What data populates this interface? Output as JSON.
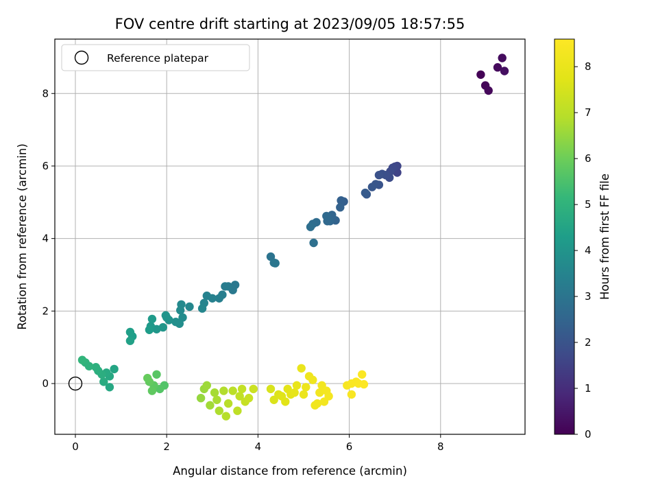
{
  "chart_data": {
    "type": "scatter",
    "title": "FOV centre drift starting at 2023/09/05 18:57:55",
    "xlabel": "Angular distance from reference (arcmin)",
    "ylabel": "Rotation from reference (arcmin)",
    "xlim": [
      -0.45,
      9.85
    ],
    "ylim": [
      -1.4,
      9.5
    ],
    "xticks": [
      0,
      2,
      4,
      6,
      8
    ],
    "yticks": [
      0,
      2,
      4,
      6,
      8
    ],
    "grid": true,
    "legend": {
      "placement": "top-left",
      "entries": [
        "Reference platepar"
      ]
    },
    "reference_point": {
      "x": 0,
      "y": 0
    },
    "colorbar": {
      "label": "Hours from first FF file",
      "range": [
        0,
        8.6
      ],
      "ticks": [
        0,
        1,
        2,
        3,
        4,
        5,
        6,
        7,
        8
      ],
      "colormap": "viridis"
    },
    "points": [
      [
        8.88,
        8.52,
        0.05
      ],
      [
        8.98,
        8.22,
        0.1
      ],
      [
        9.05,
        8.08,
        0.15
      ],
      [
        9.25,
        8.72,
        0.2
      ],
      [
        9.35,
        8.98,
        0.25
      ],
      [
        9.4,
        8.62,
        0.3
      ],
      [
        7.05,
        5.82,
        1.55
      ],
      [
        7.05,
        6.0,
        1.6
      ],
      [
        7.0,
        5.98,
        1.65
      ],
      [
        6.95,
        5.95,
        1.7
      ],
      [
        6.9,
        5.85,
        1.75
      ],
      [
        6.88,
        5.68,
        1.8
      ],
      [
        6.8,
        5.75,
        1.85
      ],
      [
        6.72,
        5.78,
        1.9
      ],
      [
        6.65,
        5.75,
        1.95
      ],
      [
        6.65,
        5.48,
        2.0
      ],
      [
        6.58,
        5.5,
        2.05
      ],
      [
        6.5,
        5.42,
        2.1
      ],
      [
        6.38,
        5.22,
        2.15
      ],
      [
        6.35,
        5.26,
        2.2
      ],
      [
        5.88,
        5.02,
        2.3
      ],
      [
        5.82,
        5.05,
        2.35
      ],
      [
        5.8,
        4.86,
        2.4
      ],
      [
        5.7,
        4.5,
        2.45
      ],
      [
        5.62,
        4.65,
        2.5
      ],
      [
        5.58,
        4.48,
        2.55
      ],
      [
        5.52,
        4.48,
        2.6
      ],
      [
        5.5,
        4.62,
        2.65
      ],
      [
        5.28,
        4.45,
        2.7
      ],
      [
        5.2,
        4.4,
        2.75
      ],
      [
        5.15,
        4.32,
        2.8
      ],
      [
        5.22,
        3.88,
        2.85
      ],
      [
        4.28,
        3.5,
        2.95
      ],
      [
        4.35,
        3.33,
        3.0
      ],
      [
        4.38,
        3.32,
        3.05
      ],
      [
        3.5,
        2.72,
        3.1
      ],
      [
        3.45,
        2.58,
        3.15
      ],
      [
        3.35,
        2.68,
        3.2
      ],
      [
        3.28,
        2.68,
        3.25
      ],
      [
        3.22,
        2.45,
        3.3
      ],
      [
        3.15,
        2.35,
        3.35
      ],
      [
        3.0,
        2.35,
        3.4
      ],
      [
        2.88,
        2.42,
        3.45
      ],
      [
        2.82,
        2.22,
        3.5
      ],
      [
        2.78,
        2.07,
        3.55
      ],
      [
        2.5,
        2.12,
        3.6
      ],
      [
        2.32,
        2.18,
        3.65
      ],
      [
        2.3,
        2.02,
        3.7
      ],
      [
        2.35,
        1.82,
        3.75
      ],
      [
        2.28,
        1.65,
        3.8
      ],
      [
        2.2,
        1.7,
        3.85
      ],
      [
        2.05,
        1.75,
        3.9
      ],
      [
        2.0,
        1.82,
        3.95
      ],
      [
        1.98,
        1.88,
        4.0
      ],
      [
        1.92,
        1.55,
        4.05
      ],
      [
        1.78,
        1.5,
        4.1
      ],
      [
        1.65,
        1.58,
        4.15
      ],
      [
        1.68,
        1.78,
        4.2
      ],
      [
        1.62,
        1.48,
        4.25
      ],
      [
        1.25,
        1.3,
        4.3
      ],
      [
        1.2,
        1.42,
        4.35
      ],
      [
        1.2,
        1.18,
        4.4
      ],
      [
        0.85,
        0.4,
        4.55
      ],
      [
        0.75,
        -0.1,
        4.6
      ],
      [
        0.75,
        0.2,
        4.65
      ],
      [
        0.68,
        0.3,
        4.7
      ],
      [
        0.62,
        0.05,
        4.75
      ],
      [
        0.58,
        0.25,
        4.8
      ],
      [
        0.5,
        0.35,
        4.85
      ],
      [
        0.45,
        0.45,
        4.9
      ],
      [
        0.3,
        0.48,
        4.95
      ],
      [
        0.22,
        0.58,
        5.0
      ],
      [
        0.15,
        0.65,
        5.05
      ],
      [
        1.95,
        -0.05,
        5.6
      ],
      [
        1.85,
        -0.15,
        5.65
      ],
      [
        1.78,
        0.25,
        5.7
      ],
      [
        1.72,
        -0.05,
        5.75
      ],
      [
        1.68,
        -0.2,
        5.8
      ],
      [
        1.62,
        0.05,
        5.85
      ],
      [
        1.58,
        0.15,
        5.9
      ],
      [
        2.75,
        -0.4,
        6.5
      ],
      [
        2.82,
        -0.15,
        6.55
      ],
      [
        2.88,
        -0.05,
        6.6
      ],
      [
        2.95,
        -0.6,
        6.65
      ],
      [
        3.05,
        -0.25,
        6.7
      ],
      [
        3.1,
        -0.45,
        6.75
      ],
      [
        3.15,
        -0.75,
        6.8
      ],
      [
        3.25,
        -0.2,
        6.85
      ],
      [
        3.3,
        -0.9,
        6.9
      ],
      [
        3.35,
        -0.55,
        6.95
      ],
      [
        3.45,
        -0.2,
        7.0
      ],
      [
        3.55,
        -0.75,
        7.05
      ],
      [
        3.6,
        -0.35,
        7.1
      ],
      [
        3.65,
        -0.15,
        7.15
      ],
      [
        3.72,
        -0.5,
        7.2
      ],
      [
        3.8,
        -0.4,
        7.25
      ],
      [
        3.9,
        -0.15,
        7.3
      ],
      [
        4.28,
        -0.15,
        7.55
      ],
      [
        4.35,
        -0.45,
        7.6
      ],
      [
        4.45,
        -0.3,
        7.65
      ],
      [
        4.52,
        -0.35,
        7.7
      ],
      [
        4.6,
        -0.5,
        7.75
      ],
      [
        4.65,
        -0.15,
        7.8
      ],
      [
        4.72,
        -0.3,
        7.85
      ],
      [
        4.8,
        -0.25,
        7.9
      ],
      [
        4.85,
        -0.05,
        7.95
      ],
      [
        4.95,
        0.42,
        8.0
      ],
      [
        5.0,
        -0.3,
        8.05
      ],
      [
        5.05,
        -0.1,
        8.1
      ],
      [
        5.12,
        0.2,
        8.15
      ],
      [
        5.2,
        0.1,
        8.18
      ],
      [
        5.25,
        -0.6,
        8.2
      ],
      [
        5.3,
        -0.55,
        8.22
      ],
      [
        5.35,
        -0.25,
        8.24
      ],
      [
        5.4,
        -0.05,
        8.26
      ],
      [
        5.45,
        -0.5,
        8.28
      ],
      [
        5.5,
        -0.2,
        8.3
      ],
      [
        5.55,
        -0.35,
        8.32
      ],
      [
        5.95,
        -0.05,
        8.4
      ],
      [
        6.05,
        -0.3,
        8.45
      ],
      [
        6.05,
        0.0,
        8.48
      ],
      [
        6.15,
        0.05,
        8.5
      ],
      [
        6.2,
        0.0,
        8.52
      ],
      [
        6.28,
        0.25,
        8.55
      ],
      [
        6.32,
        -0.02,
        8.58
      ]
    ]
  }
}
